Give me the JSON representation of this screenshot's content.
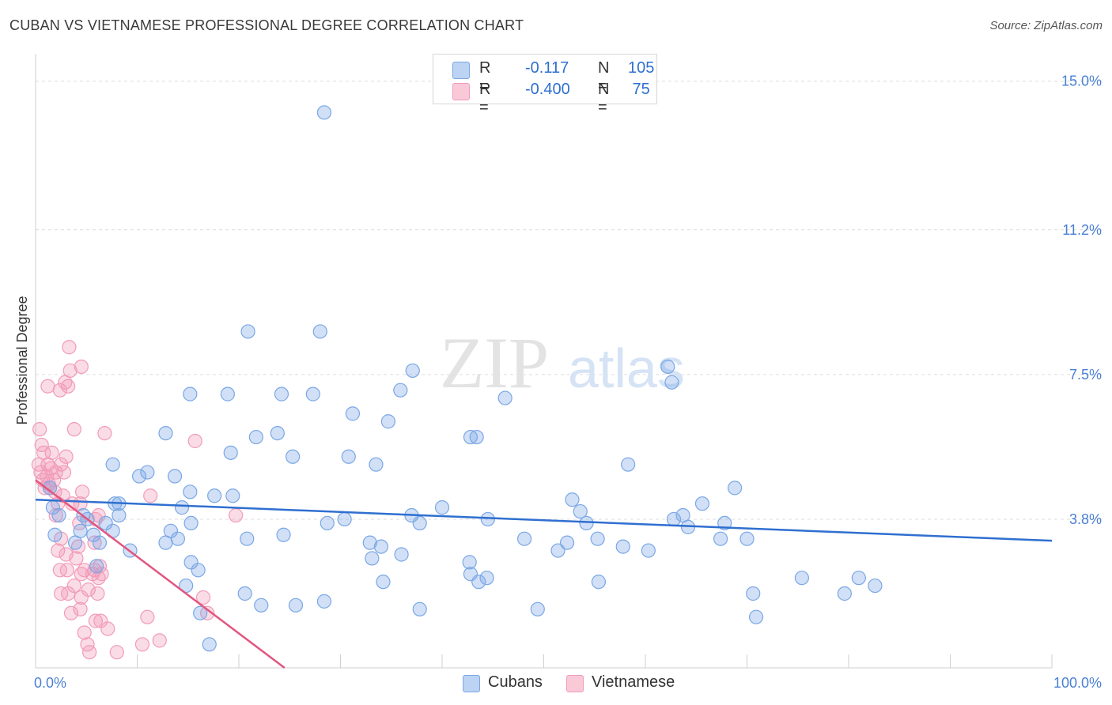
{
  "title": "CUBAN VS VIETNAMESE PROFESSIONAL DEGREE CORRELATION CHART",
  "source": "Source: ZipAtlas.com",
  "legend": {
    "rows": [
      {
        "r_label": "R =",
        "r_value": "-0.117",
        "n_label": "N =",
        "n_value": "105"
      },
      {
        "r_label": "R =",
        "r_value": "-0.400",
        "n_label": "N =",
        "n_value": " 75"
      }
    ]
  },
  "bottom_legend": [
    "Cubans",
    "Vietnamese"
  ],
  "watermark": {
    "zip": "ZIP",
    "atlas": "atlas"
  },
  "chart_data": {
    "type": "scatter",
    "title": "CUBAN VS VIETNAMESE PROFESSIONAL DEGREE CORRELATION CHART",
    "xlabel": "",
    "ylabel": "Professional Degree",
    "xlim": [
      0,
      100
    ],
    "ylim": [
      0,
      15.5
    ],
    "y_ticks": [
      3.8,
      7.5,
      11.2,
      15.0
    ],
    "y_tick_labels": [
      "3.8%",
      "7.5%",
      "11.2%",
      "15.0%"
    ],
    "x_tick_labels": [
      "0.0%",
      "100.0%"
    ],
    "colors": {
      "cubans": "#7aa7e6",
      "cubans_line": "#2f6fd0",
      "vietnamese": "#f29bb8",
      "vietnamese_line": "#e2557f"
    },
    "series": [
      {
        "name": "Cubans",
        "trend": {
          "x": [
            0,
            100
          ],
          "y": [
            4.3,
            3.25
          ]
        },
        "points": [
          [
            28.4,
            14.2
          ],
          [
            20.9,
            8.6
          ],
          [
            28.0,
            8.6
          ],
          [
            35.9,
            7.1
          ],
          [
            37.1,
            7.6
          ],
          [
            24.2,
            7.0
          ],
          [
            27.3,
            7.0
          ],
          [
            18.9,
            7.0
          ],
          [
            15.2,
            7.0
          ],
          [
            34.7,
            6.3
          ],
          [
            12.8,
            6.0
          ],
          [
            23.8,
            6.0
          ],
          [
            21.7,
            5.9
          ],
          [
            31.2,
            6.5
          ],
          [
            42.8,
            5.9
          ],
          [
            43.4,
            5.9
          ],
          [
            46.2,
            6.9
          ],
          [
            62.2,
            7.7
          ],
          [
            62.6,
            7.3
          ],
          [
            58.3,
            5.2
          ],
          [
            7.6,
            5.2
          ],
          [
            11.0,
            5.0
          ],
          [
            19.2,
            5.5
          ],
          [
            25.3,
            5.4
          ],
          [
            30.8,
            5.4
          ],
          [
            33.5,
            5.2
          ],
          [
            10.2,
            4.9
          ],
          [
            13.7,
            4.9
          ],
          [
            15.2,
            4.5
          ],
          [
            19.4,
            4.4
          ],
          [
            7.8,
            4.2
          ],
          [
            17.6,
            4.4
          ],
          [
            6.9,
            3.7
          ],
          [
            8.2,
            4.2
          ],
          [
            6.3,
            3.2
          ],
          [
            5.7,
            3.4
          ],
          [
            5.1,
            3.8
          ],
          [
            4.7,
            3.9
          ],
          [
            6.0,
            2.6
          ],
          [
            4.4,
            3.5
          ],
          [
            3.9,
            3.2
          ],
          [
            1.9,
            3.4
          ],
          [
            1.7,
            4.1
          ],
          [
            1.4,
            4.6
          ],
          [
            2.3,
            3.9
          ],
          [
            12.8,
            3.2
          ],
          [
            8.2,
            3.9
          ],
          [
            14.0,
            3.3
          ],
          [
            13.3,
            3.5
          ],
          [
            15.3,
            3.7
          ],
          [
            14.4,
            4.1
          ],
          [
            20.8,
            3.3
          ],
          [
            24.4,
            3.4
          ],
          [
            28.7,
            3.7
          ],
          [
            30.4,
            3.8
          ],
          [
            37.8,
            3.7
          ],
          [
            40.0,
            4.1
          ],
          [
            44.5,
            3.8
          ],
          [
            48.1,
            3.3
          ],
          [
            52.3,
            3.2
          ],
          [
            55.3,
            3.3
          ],
          [
            51.4,
            3.0
          ],
          [
            57.8,
            3.1
          ],
          [
            52.8,
            4.3
          ],
          [
            53.6,
            4.0
          ],
          [
            54.2,
            3.7
          ],
          [
            60.3,
            3.0
          ],
          [
            62.8,
            3.8
          ],
          [
            63.7,
            3.9
          ],
          [
            64.2,
            3.6
          ],
          [
            65.6,
            4.2
          ],
          [
            67.8,
            3.7
          ],
          [
            67.4,
            3.3
          ],
          [
            68.8,
            4.6
          ],
          [
            70.0,
            3.3
          ],
          [
            70.6,
            1.9
          ],
          [
            70.9,
            1.3
          ],
          [
            75.4,
            2.3
          ],
          [
            79.6,
            1.9
          ],
          [
            81.0,
            2.3
          ],
          [
            82.6,
            2.1
          ],
          [
            42.8,
            2.4
          ],
          [
            43.6,
            2.2
          ],
          [
            44.4,
            2.3
          ],
          [
            42.7,
            2.7
          ],
          [
            33.1,
            2.8
          ],
          [
            34.2,
            2.2
          ],
          [
            37.8,
            1.5
          ],
          [
            36.0,
            2.9
          ],
          [
            49.4,
            1.5
          ],
          [
            55.4,
            2.2
          ],
          [
            37.0,
            3.9
          ],
          [
            32.9,
            3.2
          ],
          [
            34.0,
            3.1
          ],
          [
            7.6,
            3.5
          ],
          [
            9.3,
            3.0
          ],
          [
            15.3,
            2.7
          ],
          [
            16.0,
            2.5
          ],
          [
            14.8,
            2.1
          ],
          [
            20.6,
            1.9
          ],
          [
            22.2,
            1.6
          ],
          [
            25.6,
            1.6
          ],
          [
            28.4,
            1.7
          ],
          [
            17.1,
            0.6
          ],
          [
            16.2,
            1.4
          ]
        ]
      },
      {
        "name": "Vietnamese",
        "trend": {
          "x": [
            0,
            24.5
          ],
          "y": [
            4.8,
            0.0
          ]
        },
        "points": [
          [
            0.4,
            6.1
          ],
          [
            0.6,
            5.7
          ],
          [
            0.8,
            5.5
          ],
          [
            0.3,
            5.2
          ],
          [
            0.5,
            5.0
          ],
          [
            0.7,
            4.8
          ],
          [
            0.9,
            4.6
          ],
          [
            1.1,
            4.9
          ],
          [
            1.3,
            4.7
          ],
          [
            1.5,
            5.1
          ],
          [
            1.8,
            4.8
          ],
          [
            2.0,
            5.0
          ],
          [
            1.6,
            5.5
          ],
          [
            1.9,
            4.5
          ],
          [
            2.2,
            4.2
          ],
          [
            2.5,
            5.2
          ],
          [
            2.8,
            5.0
          ],
          [
            3.0,
            5.4
          ],
          [
            1.2,
            5.2
          ],
          [
            1.4,
            4.6
          ],
          [
            1.2,
            7.2
          ],
          [
            2.4,
            7.1
          ],
          [
            2.9,
            7.3
          ],
          [
            3.2,
            7.2
          ],
          [
            3.4,
            7.6
          ],
          [
            4.5,
            7.7
          ],
          [
            3.3,
            8.2
          ],
          [
            3.8,
            6.1
          ],
          [
            6.8,
            6.0
          ],
          [
            15.7,
            5.8
          ],
          [
            3.6,
            4.2
          ],
          [
            2.7,
            4.4
          ],
          [
            2.0,
            3.9
          ],
          [
            4.4,
            4.2
          ],
          [
            4.3,
            3.7
          ],
          [
            4.6,
            4.5
          ],
          [
            5.9,
            3.8
          ],
          [
            6.2,
            3.9
          ],
          [
            2.5,
            3.3
          ],
          [
            2.2,
            3.0
          ],
          [
            3.0,
            2.9
          ],
          [
            4.0,
            2.8
          ],
          [
            4.2,
            3.1
          ],
          [
            5.8,
            3.2
          ],
          [
            6.3,
            2.6
          ],
          [
            2.4,
            2.5
          ],
          [
            3.1,
            2.5
          ],
          [
            4.5,
            2.4
          ],
          [
            4.8,
            2.5
          ],
          [
            5.6,
            2.4
          ],
          [
            5.8,
            2.5
          ],
          [
            6.2,
            2.3
          ],
          [
            6.5,
            2.4
          ],
          [
            3.8,
            2.1
          ],
          [
            4.5,
            1.8
          ],
          [
            2.5,
            1.9
          ],
          [
            3.2,
            1.9
          ],
          [
            5.2,
            2.0
          ],
          [
            6.1,
            1.9
          ],
          [
            3.5,
            1.4
          ],
          [
            4.4,
            1.5
          ],
          [
            5.9,
            1.2
          ],
          [
            6.4,
            1.2
          ],
          [
            7.1,
            1.0
          ],
          [
            4.8,
            0.9
          ],
          [
            5.1,
            0.6
          ],
          [
            5.3,
            0.4
          ],
          [
            8.0,
            0.4
          ],
          [
            10.5,
            0.6
          ],
          [
            12.2,
            0.7
          ],
          [
            11.0,
            1.3
          ],
          [
            16.5,
            1.8
          ],
          [
            16.9,
            1.4
          ],
          [
            19.7,
            3.9
          ],
          [
            11.3,
            4.4
          ]
        ]
      }
    ]
  }
}
